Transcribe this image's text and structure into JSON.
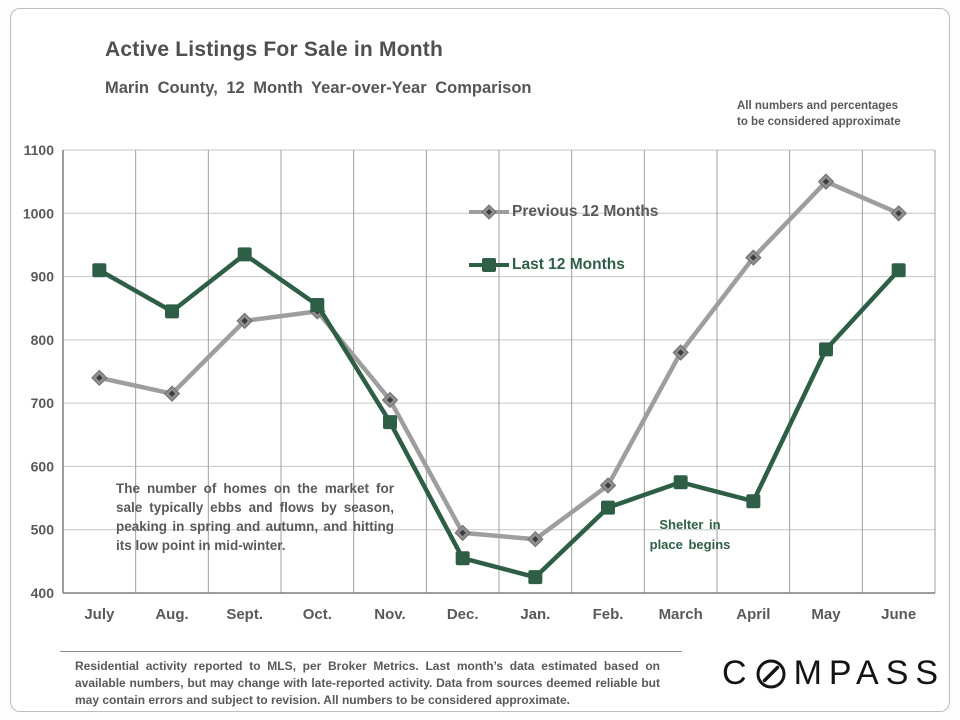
{
  "header": {
    "title": "Active Listings For Sale in Month",
    "subtitle": "Marin County, 12 Month Year-over-Year Comparison",
    "note_line1": "All numbers and percentages",
    "note_line2": "to be considered approximate"
  },
  "annotations": {
    "seasonality": "The number of homes on the market for sale typically ebbs and flows by season, peaking in spring and autumn, and hitting its low point in mid-winter.",
    "shelter_line1": "Shelter in",
    "shelter_line2": "place begins"
  },
  "footer": {
    "disclaimer": "Residential activity reported to MLS, per Broker Metrics. Last month’s data estimated based on available numbers, but may change with late-reported activity. Data from sources deemed reliable but may contain errors and subject to revision. All numbers to be considered approximate.",
    "logo_text": "COMPASS"
  },
  "colors": {
    "text": "#595959",
    "previous_line": "#9e9e9e",
    "previous_marker": "#8f8f8f",
    "previous_marker_core": "#3c3c3c",
    "last_line": "#2e5f46",
    "grid_horizontal": "#c6c6c6",
    "grid_vertical": "#9f9f9f",
    "axis": "#7f7f7f"
  },
  "chart_data": {
    "type": "line",
    "title": "Active Listings For Sale in Month",
    "subtitle": "Marin County, 12 Month Year-over-Year Comparison",
    "categories": [
      "July",
      "Aug.",
      "Sept.",
      "Oct.",
      "Nov.",
      "Dec.",
      "Jan.",
      "Feb.",
      "March",
      "April",
      "May",
      "June"
    ],
    "series": [
      {
        "name": "Previous 12 Months",
        "marker": "diamond",
        "color": "#9e9e9e",
        "values": [
          740,
          715,
          830,
          845,
          705,
          495,
          485,
          570,
          780,
          930,
          1050,
          1000
        ]
      },
      {
        "name": "Last 12 Months",
        "marker": "square",
        "color": "#2e5f46",
        "values": [
          910,
          845,
          935,
          855,
          670,
          455,
          425,
          535,
          575,
          545,
          785,
          910
        ]
      }
    ],
    "xlabel": "",
    "ylabel": "",
    "ylim": [
      400,
      1100
    ],
    "ytick_step": 100,
    "grid": true,
    "legend_position": "inside-upper-middle"
  }
}
